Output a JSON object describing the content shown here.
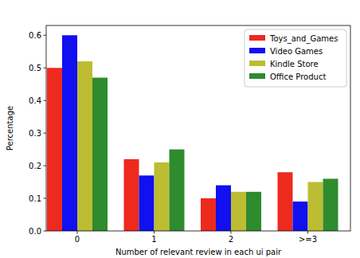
{
  "chart_data": {
    "type": "bar",
    "x_label": "Number of relevant review in each ui pair",
    "y_label": "Percentage",
    "categories": [
      "0",
      "1",
      "2",
      ">=3"
    ],
    "series": [
      {
        "name": "Toys_and_Games",
        "color": "#ee2a1f",
        "values": [
          0.5,
          0.22,
          0.1,
          0.18
        ]
      },
      {
        "name": "Video Games",
        "color": "#1010f0",
        "values": [
          0.6,
          0.17,
          0.14,
          0.09
        ]
      },
      {
        "name": "Kindle Store",
        "color": "#bcbd32",
        "values": [
          0.52,
          0.21,
          0.12,
          0.15
        ]
      },
      {
        "name": "Office Product",
        "color": "#2e8b2e",
        "values": [
          0.47,
          0.25,
          0.12,
          0.16
        ]
      }
    ],
    "ylim": [
      0,
      0.63
    ],
    "yticks": [
      {
        "value": 0,
        "label": "0.0"
      },
      0.1,
      0.2,
      0.3,
      0.4,
      0.5,
      0.6
    ],
    "grid": false,
    "legend": "upper right"
  }
}
